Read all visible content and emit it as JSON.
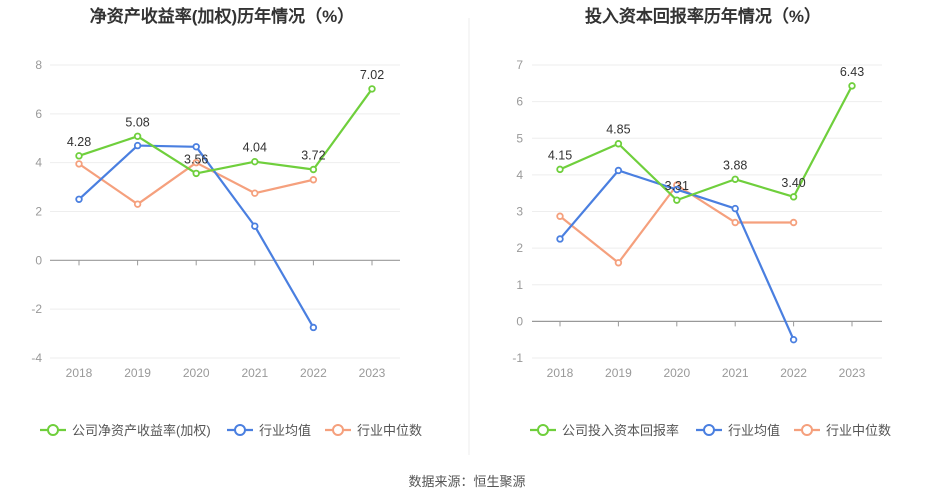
{
  "source_text": "数据来源：恒生聚源",
  "chart_data": [
    {
      "type": "line",
      "title": "净资产收益率(加权)历年情况（%）",
      "categories": [
        "2018",
        "2019",
        "2020",
        "2021",
        "2022",
        "2023"
      ],
      "ylim": [
        -4,
        8
      ],
      "yticks": [
        -4,
        -2,
        0,
        2,
        4,
        6,
        8
      ],
      "grid": true,
      "legend_position": "bottom",
      "series": [
        {
          "name": "公司净资产收益率(加权)",
          "color": "#6fcf3c",
          "values": [
            4.28,
            5.08,
            3.56,
            4.04,
            3.72,
            7.02
          ],
          "labels": [
            "4.28",
            "5.08",
            "3.56",
            "4.04",
            "3.72",
            "7.02"
          ]
        },
        {
          "name": "行业均值",
          "color": "#4a7fe0",
          "values": [
            2.5,
            4.7,
            4.65,
            1.4,
            -2.75,
            null
          ]
        },
        {
          "name": "行业中位数",
          "color": "#f5a07d",
          "values": [
            3.95,
            2.3,
            4.0,
            2.75,
            3.3,
            null
          ]
        }
      ]
    },
    {
      "type": "line",
      "title": "投入资本回报率历年情况（%）",
      "categories": [
        "2018",
        "2019",
        "2020",
        "2021",
        "2022",
        "2023"
      ],
      "ylim": [
        -1,
        7
      ],
      "yticks": [
        -1,
        0,
        1,
        2,
        3,
        4,
        5,
        6,
        7
      ],
      "grid": true,
      "legend_position": "bottom",
      "series": [
        {
          "name": "公司投入资本回报率",
          "color": "#6fcf3c",
          "values": [
            4.15,
            4.85,
            3.31,
            3.88,
            3.4,
            6.43
          ],
          "labels": [
            "4.15",
            "4.85",
            "3.31",
            "3.88",
            "3.40",
            "6.43"
          ]
        },
        {
          "name": "行业均值",
          "color": "#4a7fe0",
          "values": [
            2.25,
            4.12,
            3.6,
            3.08,
            -0.5,
            null
          ]
        },
        {
          "name": "行业中位数",
          "color": "#f5a07d",
          "values": [
            2.87,
            1.6,
            3.72,
            2.7,
            2.7,
            null
          ]
        }
      ]
    }
  ]
}
